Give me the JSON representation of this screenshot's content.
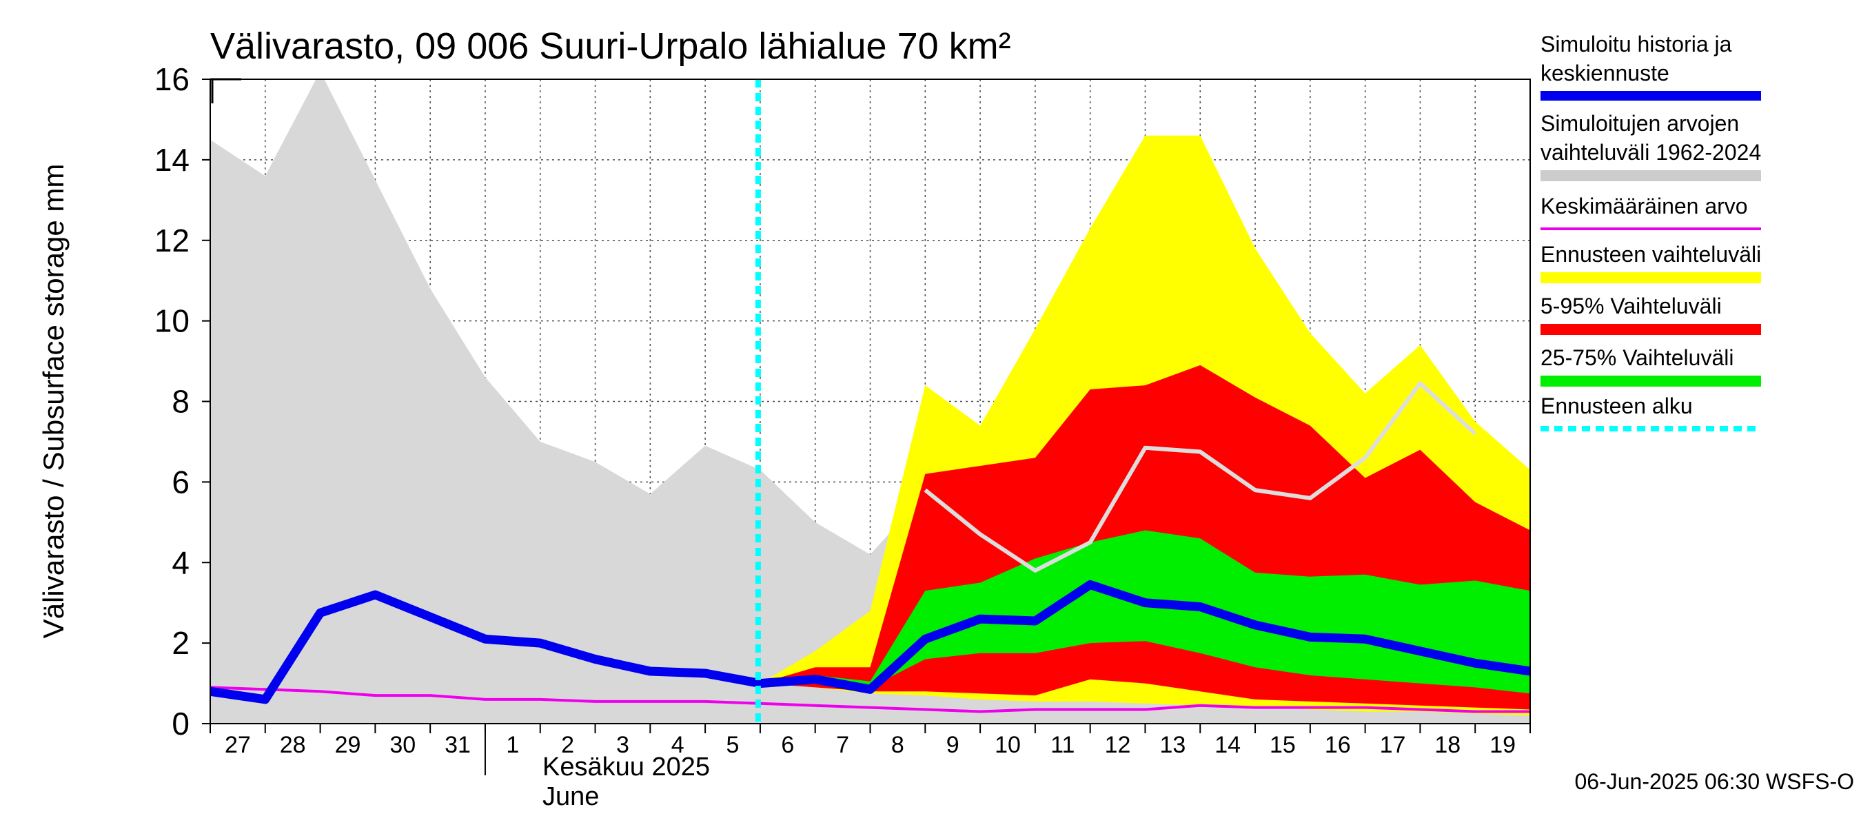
{
  "chart_data": {
    "type": "area",
    "title": "Välivarasto, 09 006 Suuri-Urpalo lähialue 70 km²",
    "ylabel": "Välivarasto / Subsurface storage  mm",
    "ylim": [
      0,
      16
    ],
    "yticks": [
      "0",
      "2",
      "4",
      "6",
      "8",
      "10",
      "12",
      "14",
      "16"
    ],
    "x_labels": [
      "27",
      "28",
      "29",
      "30",
      "31",
      "1",
      "2",
      "3",
      "4",
      "5",
      "6",
      "7",
      "8",
      "9",
      "10",
      "11",
      "12",
      "13",
      "14",
      "15",
      "16",
      "17",
      "18",
      "19"
    ],
    "month_label_fi": "Kesäkuu  2025",
    "month_label_en": "June",
    "grid": true,
    "forecast_start_index": 10,
    "history_range": {
      "x": [
        0,
        1,
        2,
        3,
        4,
        5,
        6,
        7,
        8,
        9,
        10,
        11,
        12,
        13,
        14,
        15,
        16,
        17,
        18,
        19,
        20,
        21,
        22,
        23,
        24
      ],
      "low": [
        0,
        0,
        0,
        0,
        0,
        0,
        0,
        0,
        0,
        0,
        0,
        0,
        0,
        0,
        0,
        0,
        0,
        0,
        0,
        0,
        0,
        0,
        0,
        0,
        0
      ],
      "high": [
        14.5,
        13.6,
        16.2,
        13.5,
        10.8,
        8.6,
        7.0,
        6.5,
        5.7,
        6.9,
        6.3,
        5.0,
        4.2,
        5.7,
        5.2,
        4.5,
        4.4,
        4.0,
        3.5,
        3.2,
        3.5,
        4.0,
        4.5,
        5.5,
        6.0
      ]
    },
    "forecast_range": {
      "x": [
        10,
        11,
        12,
        13,
        14,
        15,
        16,
        17,
        18,
        19,
        20,
        21,
        22,
        23,
        24
      ],
      "low": [
        1.0,
        0.9,
        0.75,
        0.7,
        0.6,
        0.55,
        0.55,
        0.5,
        0.45,
        0.4,
        0.35,
        0.3,
        0.3,
        0.25,
        0.2
      ],
      "high": [
        1.0,
        1.8,
        2.8,
        8.4,
        7.4,
        9.8,
        12.3,
        14.6,
        14.6,
        11.8,
        9.7,
        8.2,
        9.4,
        7.5,
        6.3
      ]
    },
    "p5_95": {
      "x": [
        10,
        11,
        12,
        13,
        14,
        15,
        16,
        17,
        18,
        19,
        20,
        21,
        22,
        23,
        24
      ],
      "low": [
        1.0,
        0.9,
        0.8,
        0.8,
        0.75,
        0.7,
        1.1,
        1.0,
        0.8,
        0.6,
        0.55,
        0.5,
        0.45,
        0.4,
        0.35
      ],
      "high": [
        1.0,
        1.4,
        1.4,
        6.2,
        6.4,
        6.6,
        8.3,
        8.4,
        8.9,
        8.1,
        7.4,
        6.1,
        6.8,
        5.5,
        4.8
      ]
    },
    "p25_75": {
      "x": [
        10,
        11,
        12,
        13,
        14,
        15,
        16,
        17,
        18,
        19,
        20,
        21,
        22,
        23,
        24
      ],
      "low": [
        1.0,
        1.0,
        0.9,
        1.6,
        1.75,
        1.75,
        2.0,
        2.05,
        1.75,
        1.4,
        1.2,
        1.1,
        1.0,
        0.9,
        0.75
      ],
      "high": [
        1.0,
        1.2,
        1.05,
        3.3,
        3.5,
        4.1,
        4.5,
        4.8,
        4.6,
        3.75,
        3.65,
        3.7,
        3.45,
        3.55,
        3.3
      ]
    },
    "series": [
      {
        "name": "Simuloitu historia ja keskiennuste",
        "color": "#0000ee",
        "x": [
          0,
          1,
          2,
          3,
          4,
          5,
          6,
          7,
          8,
          9,
          10,
          11,
          12,
          13,
          14,
          15,
          16,
          17,
          18,
          19,
          20,
          21,
          22,
          23,
          24
        ],
        "y": [
          0.8,
          0.6,
          2.75,
          3.2,
          2.65,
          2.1,
          2.0,
          1.6,
          1.3,
          1.25,
          1.0,
          1.1,
          0.85,
          2.1,
          2.6,
          2.55,
          3.45,
          3.0,
          2.9,
          2.45,
          2.15,
          2.1,
          1.8,
          1.5,
          1.3
        ]
      },
      {
        "name": "Keskimääräinen arvo",
        "color": "#ee00ee",
        "x": [
          0,
          1,
          2,
          3,
          4,
          5,
          6,
          7,
          8,
          9,
          10,
          11,
          12,
          13,
          14,
          15,
          16,
          17,
          18,
          19,
          20,
          21,
          22,
          23,
          24
        ],
        "y": [
          0.9,
          0.85,
          0.8,
          0.7,
          0.7,
          0.6,
          0.6,
          0.55,
          0.55,
          0.55,
          0.5,
          0.45,
          0.4,
          0.35,
          0.3,
          0.35,
          0.35,
          0.35,
          0.45,
          0.4,
          0.4,
          0.4,
          0.35,
          0.3,
          0.3
        ]
      },
      {
        "name": "",
        "color": "#dddddd",
        "x": [
          13,
          14,
          15,
          16,
          17,
          18,
          19,
          20,
          21,
          22,
          23
        ],
        "y": [
          5.8,
          4.7,
          3.8,
          4.5,
          6.85,
          6.75,
          5.8,
          5.6,
          6.6,
          8.45,
          7.2
        ]
      }
    ],
    "legend": [
      {
        "label": "Simuloitu historia ja keskiennuste",
        "color": "#0000ee",
        "style": "thick"
      },
      {
        "label": "Simuloitujen arvojen vaihteluväli 1962-2024",
        "color": "#cccccc",
        "style": "band"
      },
      {
        "label": "Keskimääräinen arvo",
        "color": "#ee00ee",
        "style": "thin"
      },
      {
        "label": "Ennusteen vaihteluväli",
        "color": "#ffff00",
        "style": "band"
      },
      {
        "label": "5-95% Vaihteluväli",
        "color": "#ff0000",
        "style": "band"
      },
      {
        "label": "25-75% Vaihteluväli",
        "color": "#00ee00",
        "style": "band"
      },
      {
        "label": "Ennusteen alku",
        "color": "#00ffff",
        "style": "dotted"
      }
    ],
    "legend_placement": "right",
    "footer": "06-Jun-2025 06:30 WSFS-O"
  }
}
